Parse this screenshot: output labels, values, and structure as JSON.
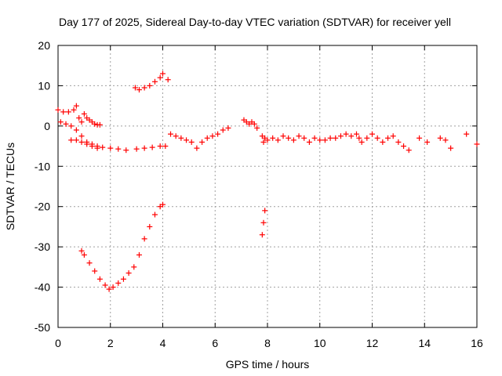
{
  "chart_data": {
    "type": "scatter",
    "title": "Day 177 of 2025, Sidereal Day-to-day VTEC variation (SDTVAR) for receiver yell",
    "xlabel": "GPS time / hours",
    "ylabel": "SDTVAR / TECUs",
    "xlim": [
      0,
      16
    ],
    "ylim": [
      -50,
      20
    ],
    "xticks": [
      0,
      2,
      4,
      6,
      8,
      10,
      12,
      14,
      16
    ],
    "yticks": [
      -50,
      -40,
      -30,
      -20,
      -10,
      0,
      10,
      20
    ],
    "grid": true,
    "marker": "+",
    "series_color": "#ff0000",
    "series": [
      {
        "name": "SDTVAR",
        "x": [
          0.0,
          0.2,
          0.4,
          0.6,
          0.7,
          0.8,
          0.9,
          1.0,
          1.1,
          1.2,
          1.3,
          1.4,
          1.5,
          1.6,
          0.1,
          0.3,
          0.5,
          0.7,
          0.9,
          1.1,
          1.3,
          1.5,
          1.7,
          2.0,
          2.3,
          2.6,
          3.0,
          3.3,
          3.6,
          3.9,
          4.1,
          0.5,
          0.7,
          0.9,
          1.1,
          1.3,
          1.5,
          0.9,
          1.0,
          1.2,
          1.4,
          1.6,
          1.8,
          1.95,
          2.1,
          2.3,
          2.5,
          2.7,
          2.9,
          3.1,
          3.3,
          3.5,
          3.7,
          3.9,
          4.0,
          2.95,
          3.1,
          3.3,
          3.5,
          3.7,
          3.9,
          4.0,
          4.2,
          4.3,
          4.5,
          4.7,
          4.9,
          5.1,
          5.3,
          5.5,
          5.7,
          5.9,
          6.1,
          6.3,
          6.5,
          7.1,
          7.2,
          7.3,
          7.4,
          7.5,
          7.6,
          7.8,
          7.85,
          7.9,
          8.0,
          7.8,
          7.85,
          7.9,
          8.2,
          8.4,
          8.6,
          8.8,
          9.0,
          9.2,
          9.4,
          9.6,
          9.8,
          10.0,
          10.2,
          10.4,
          10.6,
          10.8,
          11.0,
          11.2,
          11.4,
          11.5,
          11.6,
          11.8,
          12.0,
          12.2,
          12.4,
          12.6,
          12.8,
          13.0,
          13.2,
          13.4,
          13.8,
          14.1,
          14.6,
          14.8,
          15.0,
          15.6,
          16.0
        ],
        "y": [
          4.0,
          3.5,
          3.5,
          4.0,
          5.0,
          2.0,
          1.0,
          3.0,
          2.0,
          1.5,
          1.0,
          0.5,
          0.3,
          0.3,
          1.0,
          0.5,
          0.0,
          -1.0,
          -2.5,
          -4.0,
          -4.5,
          -5.0,
          -5.3,
          -5.5,
          -5.7,
          -6.0,
          -5.7,
          -5.5,
          -5.3,
          -5.0,
          -5.0,
          -3.5,
          -3.5,
          -4.0,
          -4.5,
          -5.0,
          -5.5,
          -31.0,
          -32.0,
          -34.0,
          -36.0,
          -38.0,
          -39.5,
          -40.5,
          -40.0,
          -39.0,
          -38.0,
          -36.5,
          -35.0,
          -32.0,
          -28.0,
          -25.0,
          -22.0,
          -20.0,
          -19.5,
          9.5,
          9.0,
          9.5,
          10.0,
          11.0,
          12.0,
          13.0,
          11.5,
          -2.0,
          -2.5,
          -3.0,
          -3.5,
          -4.0,
          -5.5,
          -4.0,
          -3.0,
          -2.5,
          -2.0,
          -1.0,
          -0.5,
          1.5,
          1.0,
          0.5,
          1.0,
          0.5,
          -0.5,
          -2.5,
          -4.0,
          -3.0,
          -3.5,
          -27.0,
          -24.0,
          -21.0,
          -3.0,
          -3.5,
          -2.5,
          -3.0,
          -3.5,
          -2.5,
          -3.0,
          -4.0,
          -3.0,
          -3.5,
          -3.5,
          -3.0,
          -3.0,
          -2.5,
          -2.0,
          -2.5,
          -2.0,
          -3.0,
          -4.0,
          -3.0,
          -2.0,
          -3.0,
          -4.0,
          -3.0,
          -2.5,
          -4.0,
          -5.0,
          -6.0,
          -3.0,
          -4.0,
          -3.0,
          -3.5,
          -5.5,
          -2.0,
          -4.5
        ]
      }
    ]
  }
}
